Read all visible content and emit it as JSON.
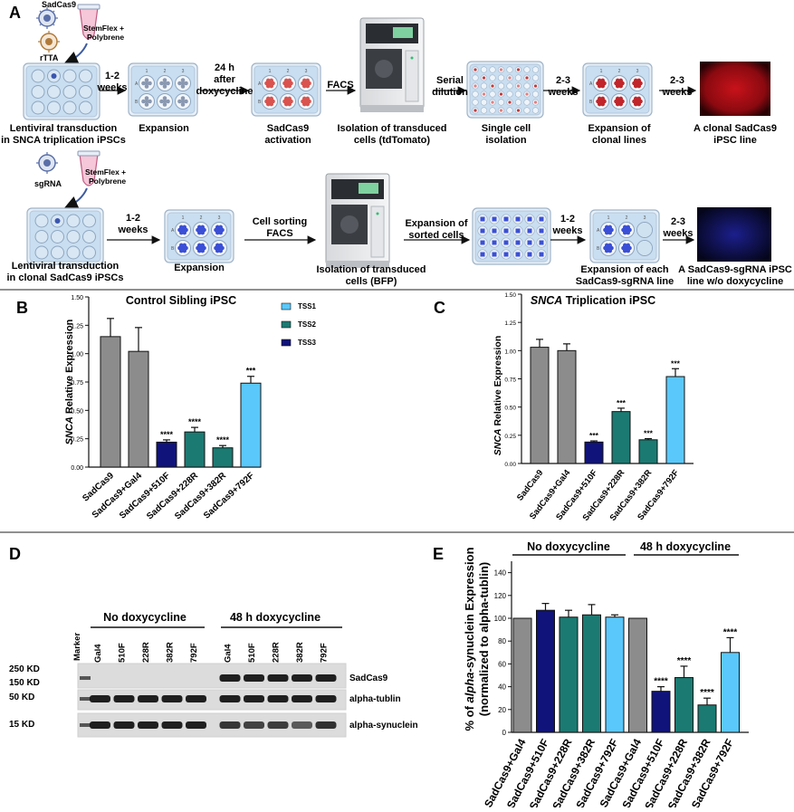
{
  "colors": {
    "gray": "#8c8c8c",
    "navy": "#10137a",
    "teal": "#1b7a72",
    "skyblue": "#5ac8fa",
    "red_cells": "#d9534f",
    "blue_cells": "#3a4fd6",
    "plate_blue": "#c9def0"
  },
  "panelA": {
    "letter": "A",
    "row1": {
      "virus1": "SadCas9",
      "virus2": "rTTA",
      "tube": "StemFlex +\nPolybrene",
      "step1": "Lentiviral transduction\nin SNCA triplication iPSCs",
      "arrow1": "1-2\nweeks",
      "step2": "Expansion",
      "arrow2": "24 h\nafter\ndoxycycline",
      "step3": "SadCas9\nactivation",
      "arrow3": "FACS",
      "step4": "Isolation of transduced\ncells (tdTomato)",
      "arrow4": "Serial\ndilution",
      "step5": "Single cell\nisolation",
      "arrow5": "2-3\nweeks",
      "step6": "Expansion of\nclonal lines",
      "arrow6": "2-3\nweeks",
      "step7": "A clonal SadCas9\niPSC line"
    },
    "row2": {
      "virus": "sgRNA",
      "tube": "StemFlex +\nPolybrene",
      "step1": "Lentiviral transduction\nin clonal SadCas9 iPSCs",
      "arrow1": "1-2\nweeks",
      "step2": "Expansion",
      "arrow2": "Cell sorting\nFACS",
      "step3": "Isolation of transduced\ncells (BFP)",
      "arrow3": "Expansion of\nsorted cells",
      "arrow4": "1-2\nweeks",
      "step5": "Expansion of each\nSadCas9-sgRNA line",
      "arrow5": "2-3\nweeks",
      "step6": "A SadCas9-sgRNA iPSC\nline w/o doxycycline"
    },
    "plate_cols": [
      "1",
      "2",
      "3"
    ],
    "plate_rows": [
      "A",
      "B"
    ]
  },
  "panelB": {
    "letter": "B",
    "chart_data": {
      "type": "bar",
      "title": "Control Sibling iPSC",
      "ylabel_italic": "SNCA",
      "ylabel": " Relative Expression",
      "ylim": [
        0,
        1.5
      ],
      "yticks": [
        "0.00",
        "0.25",
        "0.50",
        "0.75",
        "1.00",
        "1.25",
        "1.50"
      ],
      "categories": [
        "SadCas9",
        "SadCas9+Gal4",
        "SadCas9+510F",
        "SadCas9+228R",
        "SadCas9+382R",
        "SadCas9+792F"
      ],
      "values": [
        1.15,
        1.02,
        0.22,
        0.31,
        0.17,
        0.74
      ],
      "errors": [
        0.16,
        0.21,
        0.02,
        0.04,
        0.02,
        0.06
      ],
      "colors": [
        "gray",
        "gray",
        "navy",
        "teal",
        "teal",
        "skyblue"
      ],
      "significance": [
        "",
        "",
        "****",
        "****",
        "****",
        "***"
      ],
      "legend": [
        {
          "label": "TSS1",
          "color": "skyblue"
        },
        {
          "label": "TSS2",
          "color": "teal"
        },
        {
          "label": "TSS3",
          "color": "navy"
        }
      ]
    }
  },
  "panelC": {
    "letter": "C",
    "chart_data": {
      "type": "bar",
      "title_italic": "SNCA",
      "title": " Triplication iPSC",
      "ylabel_italic": "SNCA",
      "ylabel": " Relative Expression",
      "ylim": [
        0,
        1.5
      ],
      "yticks": [
        "0.00",
        "0.25",
        "0.50",
        "0.75",
        "1.00",
        "1.25",
        "1.50"
      ],
      "categories": [
        "SadCas9",
        "SadCas9+Gal4",
        "SadCas9+510F",
        "SadCas9+228R",
        "SadCas9+382R",
        "SadCas9+792F"
      ],
      "values": [
        1.03,
        1.0,
        0.19,
        0.46,
        0.21,
        0.77
      ],
      "errors": [
        0.07,
        0.06,
        0.01,
        0.03,
        0.01,
        0.07
      ],
      "colors": [
        "gray",
        "gray",
        "navy",
        "teal",
        "teal",
        "skyblue"
      ],
      "significance": [
        "",
        "",
        "***",
        "***",
        "***",
        "***"
      ]
    }
  },
  "panelD": {
    "letter": "D",
    "group1": "No doxycycline",
    "group2": "48 h doxycycline",
    "marker": "Marker",
    "lanes": [
      "Gal4",
      "510F",
      "228R",
      "382R",
      "792F",
      "Gal4",
      "510F",
      "228R",
      "382R",
      "792F"
    ],
    "mw": [
      "250 KD",
      "150 KD",
      "50 KD",
      "15 KD"
    ],
    "bands": [
      "SadCas9",
      "alpha-tublin",
      "alpha-synuclein"
    ]
  },
  "panelE": {
    "letter": "E",
    "chart_data": {
      "type": "bar",
      "group1": "No doxycycline",
      "group2": "48 h doxycycline",
      "ylabel1": "% of ",
      "ylabel1_italic": "alpha",
      "ylabel1_end": "-synuclein Expression",
      "ylabel2": "(normalized to alpha-tublin)",
      "ylim": [
        0,
        150
      ],
      "yticks": [
        "0",
        "20",
        "40",
        "60",
        "80",
        "100",
        "120",
        "140"
      ],
      "categories": [
        "SadCas9+Gal4",
        "SadCas9+510F",
        "SadCas9+228R",
        "SadCas9+382R",
        "SadCas9+792F",
        "SadCas9+Gal4",
        "SadCas9+510F",
        "SadCas9+228R",
        "SadCas9+382R",
        "SadCas9+792F"
      ],
      "values": [
        100,
        107,
        101,
        103,
        101,
        100,
        36,
        48,
        24,
        70
      ],
      "errors": [
        0,
        6,
        6,
        9,
        2,
        0,
        4,
        10,
        6,
        13
      ],
      "colors": [
        "gray",
        "navy",
        "teal",
        "teal",
        "skyblue",
        "gray",
        "navy",
        "teal",
        "teal",
        "skyblue"
      ],
      "significance": [
        "",
        "",
        "",
        "",
        "",
        "",
        "****",
        "****",
        "****",
        "****"
      ]
    }
  }
}
